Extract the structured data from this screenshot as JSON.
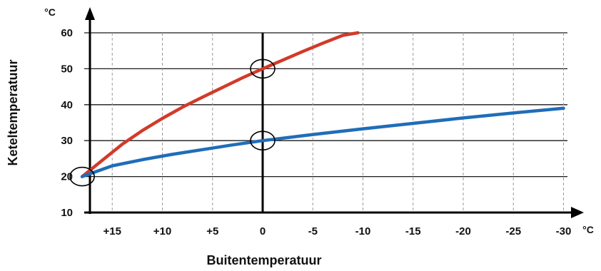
{
  "chart_data": {
    "type": "line",
    "title": "",
    "xlabel": "Buitentemperatuur",
    "ylabel": "Keteltemperatuur",
    "x_unit": "°C",
    "y_unit": "°C",
    "x_direction": "reversed",
    "xlim": [
      18,
      -31
    ],
    "ylim": [
      10,
      60
    ],
    "x_ticks": [
      15,
      10,
      5,
      0,
      -5,
      -10,
      -15,
      -20,
      -25,
      -30
    ],
    "x_tick_labels": [
      "+15",
      "+10",
      "+5",
      "0",
      "-5",
      "-10",
      "-15",
      "-20",
      "-25",
      "-30"
    ],
    "y_ticks": [
      10,
      20,
      30,
      40,
      50,
      60
    ],
    "y_tick_labels": [
      "10",
      "20",
      "30",
      "40",
      "50",
      "60"
    ],
    "grid": true,
    "legend": "none",
    "series": [
      {
        "color": "#d23a2a",
        "x": [
          18,
          16,
          14,
          12,
          10,
          8,
          6,
          4,
          2,
          0,
          -2,
          -4,
          -6,
          -8,
          -9.5
        ],
        "y": [
          20,
          24.5,
          29,
          32.8,
          36.2,
          39.3,
          42.1,
          44.8,
          47.5,
          50,
          52.4,
          54.8,
          57.1,
          59.3,
          60
        ]
      },
      {
        "color": "#1f6db8",
        "x": [
          18,
          15,
          12,
          9,
          6,
          3,
          0,
          -5,
          -10,
          -15,
          -20,
          -25,
          -30
        ],
        "y": [
          20,
          23,
          24.7,
          26.2,
          27.5,
          28.8,
          30,
          31.7,
          33.3,
          34.8,
          36.3,
          37.7,
          39
        ]
      }
    ],
    "annotations": [
      {
        "shape": "circle",
        "x": 18,
        "y": 20
      },
      {
        "shape": "circle",
        "x": 0,
        "y": 50
      },
      {
        "shape": "circle",
        "x": 0,
        "y": 30
      }
    ]
  }
}
